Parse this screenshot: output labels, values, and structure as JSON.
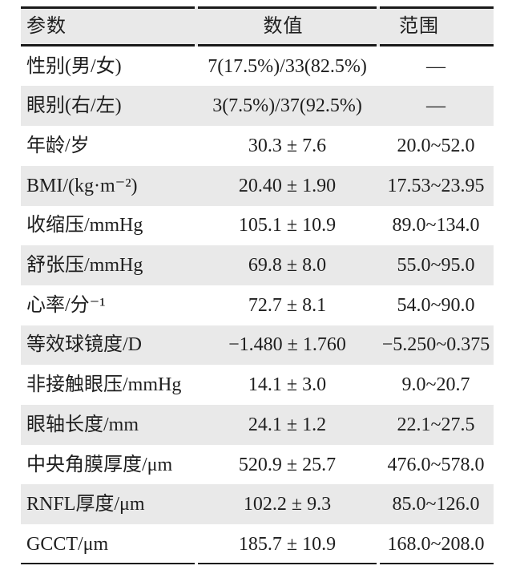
{
  "table": {
    "colors": {
      "zebra_row_background": "#e9e9e9",
      "text": "#1e1e1e",
      "rule": "#1a1a1a",
      "page_background": "#ffffff"
    },
    "columns": [
      {
        "key": "param",
        "label": "参数"
      },
      {
        "key": "value",
        "label": "数值"
      },
      {
        "key": "range",
        "label": "范围"
      }
    ],
    "rows": [
      {
        "param": "性别(男/女)",
        "value": "7(17.5%)/33(82.5%)",
        "range": "—"
      },
      {
        "param": "眼别(右/左)",
        "value": "3(7.5%)/37(92.5%)",
        "range": "—"
      },
      {
        "param": "年龄/岁",
        "value": "30.3 ± 7.6",
        "range": "20.0~52.0"
      },
      {
        "param": "BMI/(kg·m⁻²)",
        "value": "20.40 ± 1.90",
        "range": "17.53~23.95"
      },
      {
        "param": "收缩压/mmHg",
        "value": "105.1 ± 10.9",
        "range": "89.0~134.0"
      },
      {
        "param": "舒张压/mmHg",
        "value": "69.8 ± 8.0",
        "range": "55.0~95.0"
      },
      {
        "param": "心率/分⁻¹",
        "value": "72.7 ± 8.1",
        "range": "54.0~90.0"
      },
      {
        "param": "等效球镜度/D",
        "value": "−1.480 ± 1.760",
        "range": "−5.250~0.375"
      },
      {
        "param": "非接触眼压/mmHg",
        "value": "14.1 ± 3.0",
        "range": "9.0~20.7"
      },
      {
        "param": "眼轴长度/mm",
        "value": "24.1 ± 1.2",
        "range": "22.1~27.5"
      },
      {
        "param": "中央角膜厚度/μm",
        "value": "520.9 ± 25.7",
        "range": "476.0~578.0"
      },
      {
        "param": "RNFL厚度/μm",
        "value": "102.2 ± 9.3",
        "range": "85.0~126.0"
      },
      {
        "param": "GCCT/μm",
        "value": "185.7 ± 10.9",
        "range": "168.0~208.0"
      }
    ]
  }
}
